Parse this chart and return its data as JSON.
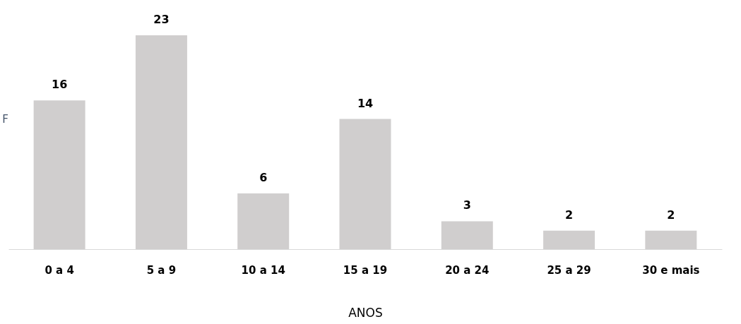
{
  "chart_data": {
    "type": "bar",
    "categories": [
      "0 a 4",
      "5 a 9",
      "10 a 14",
      "15 a 19",
      "20 a 24",
      "25 a 29",
      "30 e mais"
    ],
    "values": [
      16,
      23,
      6,
      14,
      3,
      2,
      2
    ],
    "color": "#d0cece",
    "xlabel": "ANOS",
    "ylabel": "F",
    "data_labels": true,
    "grid": false
  }
}
